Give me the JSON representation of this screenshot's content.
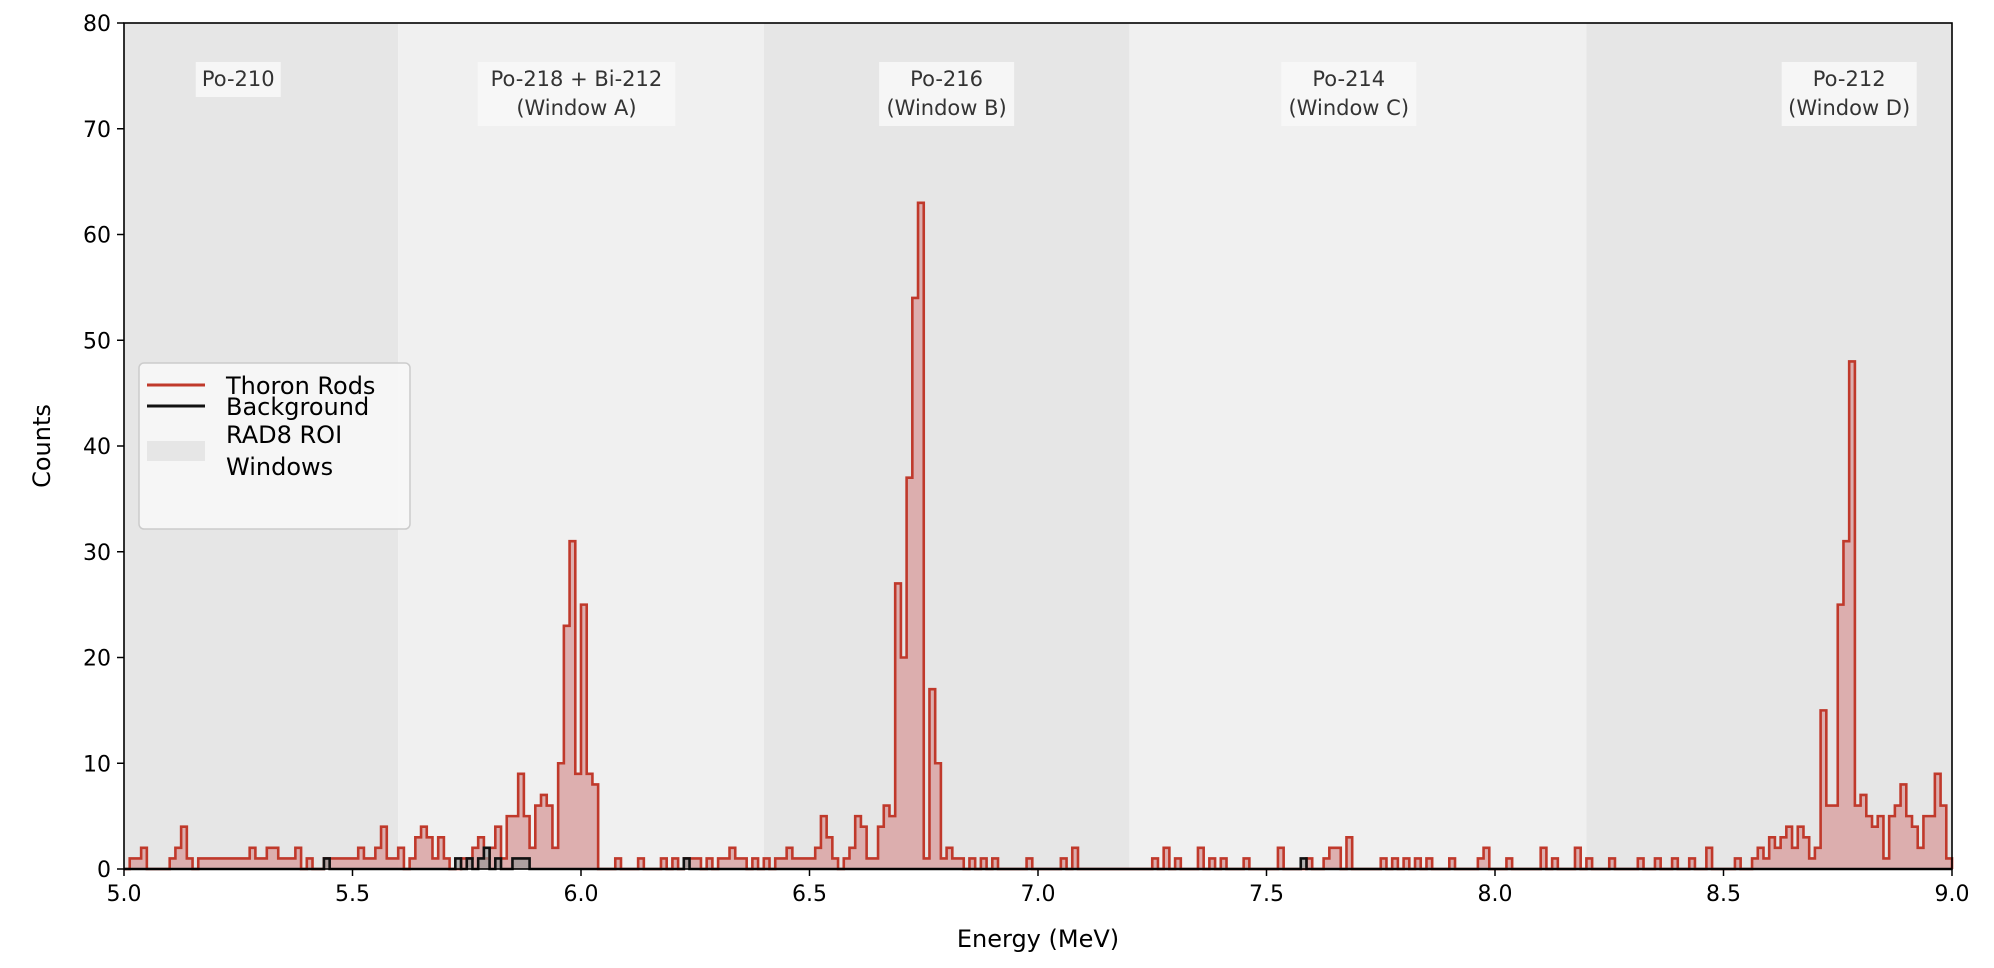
{
  "chart_data": {
    "type": "step-histogram",
    "xlabel": "Energy (MeV)",
    "ylabel": "Counts",
    "xlim": [
      5.0,
      9.0
    ],
    "ylim": [
      0,
      80
    ],
    "x_ticks": [
      5.0,
      5.5,
      6.0,
      6.5,
      7.0,
      7.5,
      8.0,
      8.5,
      9.0
    ],
    "x_tick_labels": [
      "5.0",
      "5.5",
      "6.0",
      "6.5",
      "7.0",
      "7.5",
      "8.0",
      "8.5",
      "9.0"
    ],
    "y_ticks": [
      0,
      10,
      20,
      30,
      40,
      50,
      60,
      70,
      80
    ],
    "y_tick_labels": [
      "0",
      "10",
      "20",
      "30",
      "40",
      "50",
      "60",
      "70",
      "80"
    ],
    "bin_width": 0.0125,
    "grid": false,
    "legend_position": "center-left",
    "windows": [
      {
        "name": "Po-210",
        "label_lines": [
          "Po-210"
        ],
        "x0": 5.0,
        "x1": 5.6,
        "color": "#e6e6e6"
      },
      {
        "name": "Po-218 + Bi-212",
        "label_lines": [
          "Po-218 + Bi-212",
          "(Window A)"
        ],
        "x0": 5.6,
        "x1": 6.4,
        "color": "#f0f0f0"
      },
      {
        "name": "Po-216",
        "label_lines": [
          "Po-216",
          "(Window B)"
        ],
        "x0": 6.4,
        "x1": 7.2,
        "color": "#e6e6e6"
      },
      {
        "name": "Po-214",
        "label_lines": [
          "Po-214",
          "(Window C)"
        ],
        "x0": 7.2,
        "x1": 8.2,
        "color": "#f0f0f0"
      },
      {
        "name": "Po-212",
        "label_lines": [
          "Po-212",
          "(Window D)"
        ],
        "x0": 8.2,
        "x1": 9.0,
        "color": "#e6e6e6"
      }
    ],
    "series": [
      {
        "name": "Thoron Rods",
        "color": "#c0392b",
        "fill": "#d9a3a3",
        "nonzero_bins": [
          [
            5.0125,
            1
          ],
          [
            5.025,
            1
          ],
          [
            5.0375,
            2
          ],
          [
            5.1,
            1
          ],
          [
            5.1125,
            2
          ],
          [
            5.125,
            4
          ],
          [
            5.1375,
            1
          ],
          [
            5.1625,
            1
          ],
          [
            5.175,
            1
          ],
          [
            5.1875,
            1
          ],
          [
            5.2,
            1
          ],
          [
            5.2125,
            1
          ],
          [
            5.225,
            1
          ],
          [
            5.2375,
            1
          ],
          [
            5.25,
            1
          ],
          [
            5.2625,
            1
          ],
          [
            5.275,
            2
          ],
          [
            5.2875,
            1
          ],
          [
            5.3,
            1
          ],
          [
            5.3125,
            2
          ],
          [
            5.325,
            2
          ],
          [
            5.3375,
            1
          ],
          [
            5.35,
            1
          ],
          [
            5.3625,
            1
          ],
          [
            5.375,
            2
          ],
          [
            5.4,
            1
          ],
          [
            5.4375,
            1
          ],
          [
            5.45,
            1
          ],
          [
            5.4625,
            1
          ],
          [
            5.475,
            1
          ],
          [
            5.4875,
            1
          ],
          [
            5.5,
            1
          ],
          [
            5.5125,
            2
          ],
          [
            5.525,
            1
          ],
          [
            5.5375,
            1
          ],
          [
            5.55,
            2
          ],
          [
            5.5625,
            4
          ],
          [
            5.575,
            1
          ],
          [
            5.5875,
            1
          ],
          [
            5.6,
            2
          ],
          [
            5.625,
            1
          ],
          [
            5.6375,
            3
          ],
          [
            5.65,
            4
          ],
          [
            5.6625,
            3
          ],
          [
            5.675,
            1
          ],
          [
            5.6875,
            3
          ],
          [
            5.7,
            1
          ],
          [
            5.7375,
            1
          ],
          [
            5.75,
            1
          ],
          [
            5.7625,
            2
          ],
          [
            5.775,
            3
          ],
          [
            5.7875,
            1
          ],
          [
            5.8,
            2
          ],
          [
            5.8125,
            4
          ],
          [
            5.825,
            1
          ],
          [
            5.8375,
            5
          ],
          [
            5.85,
            5
          ],
          [
            5.8625,
            9
          ],
          [
            5.875,
            5
          ],
          [
            5.8875,
            2
          ],
          [
            5.9,
            6
          ],
          [
            5.9125,
            7
          ],
          [
            5.925,
            6
          ],
          [
            5.9375,
            2
          ],
          [
            5.95,
            10
          ],
          [
            5.9625,
            23
          ],
          [
            5.975,
            31
          ],
          [
            5.9875,
            9
          ],
          [
            6.0,
            25
          ],
          [
            6.0125,
            9
          ],
          [
            6.025,
            8
          ],
          [
            6.08,
            1
          ],
          [
            6.12,
            1
          ],
          [
            6.17,
            1
          ],
          [
            6.2,
            1
          ],
          [
            6.22,
            1
          ],
          [
            6.235,
            1
          ],
          [
            6.25,
            1
          ],
          [
            6.28,
            1
          ],
          [
            6.3,
            1
          ],
          [
            6.3125,
            1
          ],
          [
            6.325,
            2
          ],
          [
            6.3375,
            1
          ],
          [
            6.35,
            1
          ],
          [
            6.375,
            1
          ],
          [
            6.4,
            1
          ],
          [
            6.425,
            1
          ],
          [
            6.4375,
            1
          ],
          [
            6.45,
            2
          ],
          [
            6.4625,
            1
          ],
          [
            6.475,
            1
          ],
          [
            6.4875,
            1
          ],
          [
            6.5,
            1
          ],
          [
            6.5125,
            2
          ],
          [
            6.525,
            5
          ],
          [
            6.5375,
            3
          ],
          [
            6.55,
            1
          ],
          [
            6.575,
            1
          ],
          [
            6.5875,
            2
          ],
          [
            6.6,
            5
          ],
          [
            6.6125,
            4
          ],
          [
            6.625,
            1
          ],
          [
            6.6375,
            1
          ],
          [
            6.65,
            4
          ],
          [
            6.6625,
            6
          ],
          [
            6.675,
            5
          ],
          [
            6.6875,
            27
          ],
          [
            6.7,
            20
          ],
          [
            6.7125,
            37
          ],
          [
            6.725,
            54
          ],
          [
            6.7375,
            63
          ],
          [
            6.75,
            1
          ],
          [
            6.7625,
            17
          ],
          [
            6.775,
            10
          ],
          [
            6.785,
            1
          ],
          [
            6.8,
            2
          ],
          [
            6.8125,
            1
          ],
          [
            6.825,
            1
          ],
          [
            6.85,
            1
          ],
          [
            6.875,
            1
          ],
          [
            6.9,
            1
          ],
          [
            6.975,
            1
          ],
          [
            7.05,
            1
          ],
          [
            7.075,
            2
          ],
          [
            7.25,
            1
          ],
          [
            7.275,
            2
          ],
          [
            7.3,
            1
          ],
          [
            7.35,
            2
          ],
          [
            7.375,
            1
          ],
          [
            7.4,
            1
          ],
          [
            7.45,
            1
          ],
          [
            7.525,
            2
          ],
          [
            7.5875,
            1
          ],
          [
            7.625,
            1
          ],
          [
            7.6375,
            2
          ],
          [
            7.65,
            2
          ],
          [
            7.675,
            3
          ],
          [
            7.75,
            1
          ],
          [
            7.775,
            1
          ],
          [
            7.8,
            1
          ],
          [
            7.825,
            1
          ],
          [
            7.85,
            1
          ],
          [
            7.9,
            1
          ],
          [
            7.9625,
            1
          ],
          [
            7.975,
            2
          ],
          [
            8.025,
            1
          ],
          [
            8.1,
            2
          ],
          [
            8.125,
            1
          ],
          [
            8.175,
            2
          ],
          [
            8.2,
            1
          ],
          [
            8.25,
            1
          ],
          [
            8.3125,
            1
          ],
          [
            8.35,
            1
          ],
          [
            8.3875,
            1
          ],
          [
            8.425,
            1
          ],
          [
            8.4625,
            2
          ],
          [
            8.525,
            1
          ],
          [
            8.5625,
            1
          ],
          [
            8.575,
            2
          ],
          [
            8.5875,
            1
          ],
          [
            8.6,
            3
          ],
          [
            8.6125,
            2
          ],
          [
            8.625,
            3
          ],
          [
            8.6375,
            4
          ],
          [
            8.65,
            2
          ],
          [
            8.6625,
            4
          ],
          [
            8.675,
            3
          ],
          [
            8.6875,
            1
          ],
          [
            8.7,
            2
          ],
          [
            8.7125,
            15
          ],
          [
            8.725,
            6
          ],
          [
            8.7375,
            6
          ],
          [
            8.75,
            25
          ],
          [
            8.7625,
            31
          ],
          [
            8.775,
            48
          ],
          [
            8.7875,
            6
          ],
          [
            8.8,
            7
          ],
          [
            8.8125,
            5
          ],
          [
            8.825,
            4
          ],
          [
            8.8375,
            5
          ],
          [
            8.85,
            1
          ],
          [
            8.8625,
            5
          ],
          [
            8.875,
            6
          ],
          [
            8.8875,
            8
          ],
          [
            8.9,
            5
          ],
          [
            8.9125,
            4
          ],
          [
            8.925,
            2
          ],
          [
            8.9375,
            5
          ],
          [
            8.95,
            5
          ],
          [
            8.9625,
            9
          ],
          [
            8.975,
            6
          ],
          [
            8.9875,
            1
          ]
        ]
      },
      {
        "name": "Background",
        "color": "#111111",
        "fill": "#9a9a9a",
        "nonzero_bins": [
          [
            5.4375,
            1
          ],
          [
            5.725,
            1
          ],
          [
            5.75,
            1
          ],
          [
            5.775,
            1
          ],
          [
            5.7875,
            2
          ],
          [
            5.8125,
            1
          ],
          [
            5.85,
            1
          ],
          [
            5.8625,
            1
          ],
          [
            5.875,
            1
          ],
          [
            6.225,
            1
          ],
          [
            7.575,
            1
          ]
        ]
      }
    ],
    "legend": [
      {
        "label": "Thoron Rods",
        "kind": "line",
        "color": "#c0392b"
      },
      {
        "label": "Background",
        "kind": "line",
        "color": "#111111"
      },
      {
        "label": "RAD8 ROI\nWindows",
        "kind": "patch",
        "color": "#e6e6e6"
      }
    ]
  }
}
